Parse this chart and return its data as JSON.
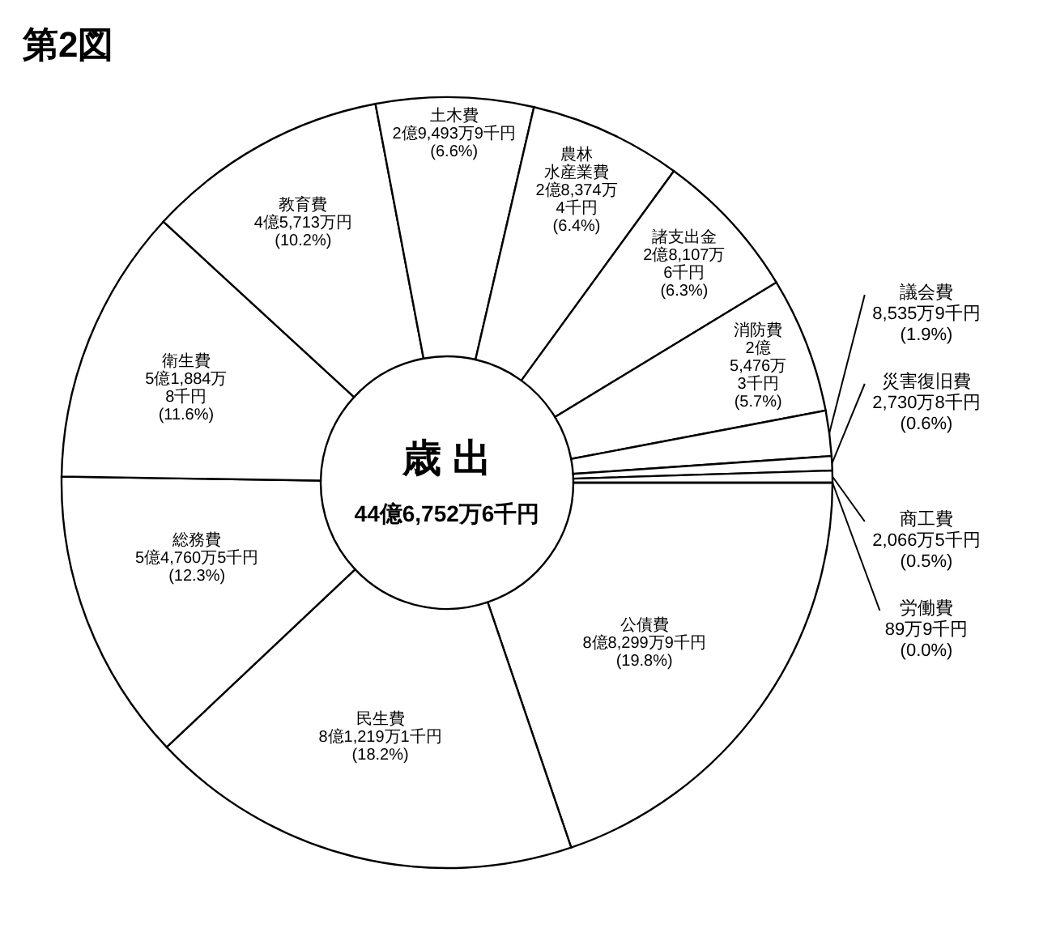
{
  "chart_data": {
    "type": "donut",
    "title": "第2図",
    "categories": [
      "公債費",
      "民生費",
      "総務費",
      "衛生費",
      "教育費",
      "土木費",
      "農林水産業費",
      "諸支出金",
      "消防費",
      "議会費",
      "災害復旧費",
      "商工費",
      "労働費"
    ],
    "values": [
      19.8,
      18.2,
      12.3,
      11.6,
      10.2,
      6.6,
      6.4,
      6.3,
      5.7,
      1.9,
      0.6,
      0.5,
      0.0
    ],
    "colors": [
      "#ffffff",
      "#ffffff",
      "#ffffff",
      "#ffffff",
      "#ffffff",
      "#ffffff",
      "#ffffff",
      "#ffffff",
      "#ffffff",
      "#ffffff",
      "#ffffff",
      "#ffffff",
      "#ffffff"
    ],
    "value_labels": [
      "8億8,299万9千円\n(19.8%)",
      "8億1,219万1千円\n(18.2%)",
      "5億4,760万5千円\n(12.3%)",
      "5億1,884万\n8千円\n(11.6%)",
      "4億5,713万円\n(10.2%)",
      "2億9,493万9千円\n(6.6%)",
      "2億8,374万\n4千円\n(6.4%)",
      "2億8,107万\n6千円\n(6.3%)",
      "2億\n5,476万\n3千円\n(5.7%)",
      "8,535万9千円\n(1.9%)",
      "2,730万8千円\n(0.6%)",
      "2,066万5千円\n(0.5%)",
      "89万9千円\n(0.0%)"
    ],
    "annotations": [
      "歳 出",
      "44億6,752万6千円"
    ]
  }
}
